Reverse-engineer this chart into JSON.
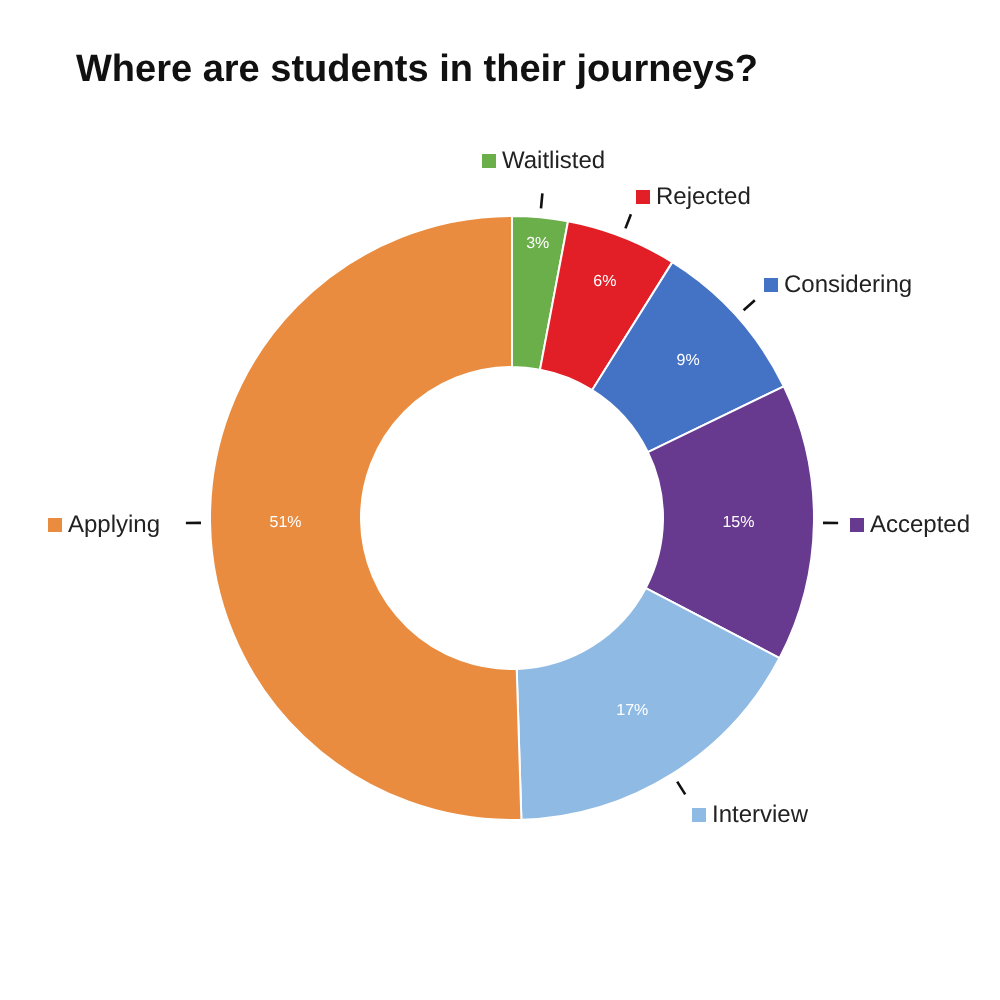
{
  "chart_data": {
    "type": "donut",
    "title": "Where are students in their journeys?",
    "categories": [
      "Waitlisted",
      "Rejected",
      "Considering",
      "Accepted",
      "Interview",
      "Applying"
    ],
    "values": [
      3,
      6,
      9,
      15,
      17,
      51
    ],
    "colors": [
      "#6aaf4a",
      "#e21f26",
      "#4472c4",
      "#683a8f",
      "#8fbae4",
      "#e98c40"
    ],
    "value_labels": [
      "3%",
      "6%",
      "9%",
      "15%",
      "17%",
      "51%"
    ],
    "legend": "right"
  }
}
